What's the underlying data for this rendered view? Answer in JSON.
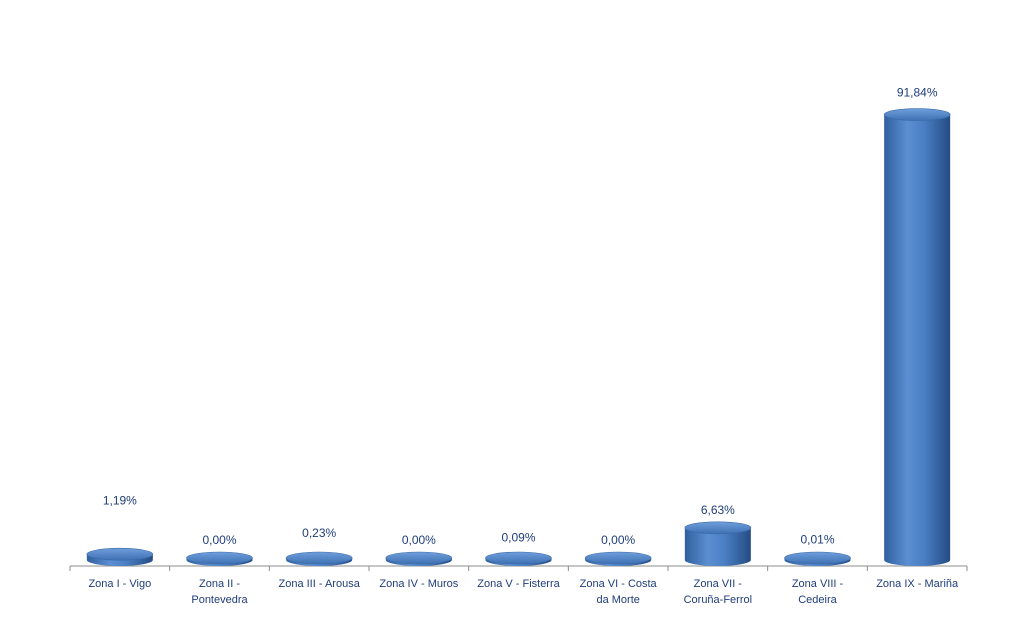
{
  "chart_data": {
    "type": "bar",
    "title": "",
    "xlabel": "",
    "ylabel": "",
    "ylim": [
      0,
      100
    ],
    "grid": false,
    "legend": "none",
    "bar_color": "#4a7fc4",
    "label_color": "#1f3d7a",
    "categories": [
      [
        "Zona I - Vigo"
      ],
      [
        "Zona II -",
        "Pontevedra"
      ],
      [
        "Zona III - Arousa"
      ],
      [
        "Zona IV - Muros"
      ],
      [
        "Zona V - Fisterra"
      ],
      [
        "Zona VI - Costa",
        "da Morte"
      ],
      [
        "Zona VII -",
        "Coruña-Ferrol"
      ],
      [
        "Zona VIII -",
        "Cedeira"
      ],
      [
        "Zona IX - Mariña"
      ]
    ],
    "values": [
      1.19,
      0.0,
      0.23,
      0.0,
      0.09,
      0.0,
      6.63,
      0.01,
      91.84
    ],
    "value_labels": [
      "1,19%",
      "0,00%",
      "0,23%",
      "0,00%",
      "0,09%",
      "0,00%",
      "6,63%",
      "0,01%",
      "91,84%"
    ]
  }
}
